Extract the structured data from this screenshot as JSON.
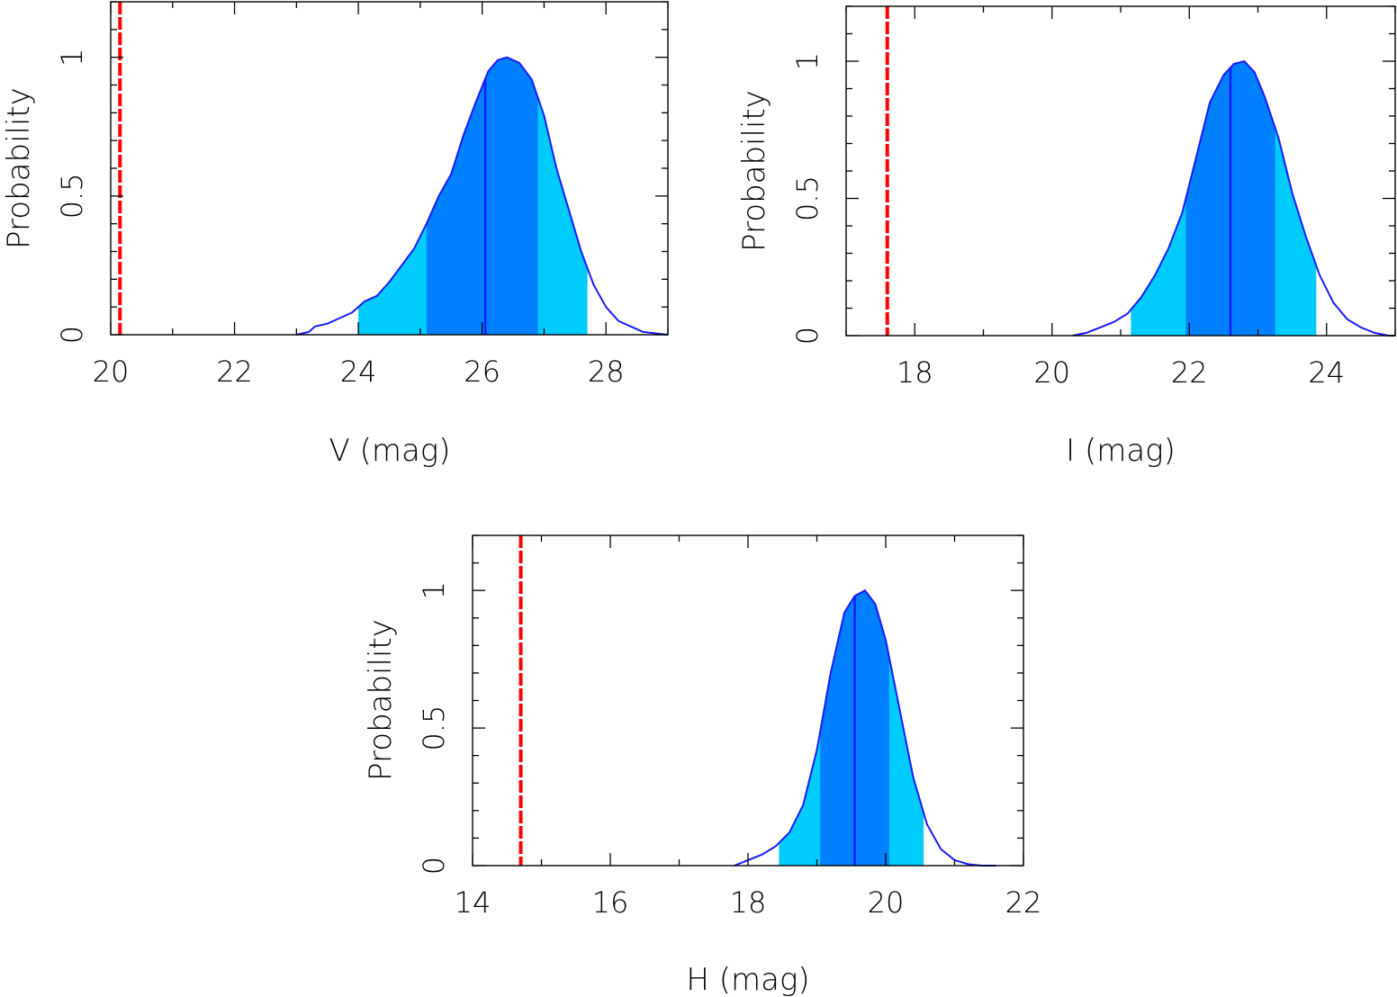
{
  "colors": {
    "curve": "#1a1aff",
    "band_1sigma": "#0080ff",
    "band_2sigma": "#00ccff",
    "median": "#1a1aff",
    "observed": "#ff0000"
  },
  "chart_data": [
    {
      "id": "v-band",
      "type": "line",
      "xlabel": "V (mag)",
      "ylabel": "Probability",
      "xlim": [
        20,
        29
      ],
      "ylim": [
        0,
        1.2
      ],
      "xticks": [
        20,
        22,
        24,
        26,
        28
      ],
      "xtick_labels": [
        "20",
        "22",
        "24",
        "26",
        "28"
      ],
      "yticks": [
        0,
        0.5,
        1
      ],
      "ytick_labels": [
        "0",
        "0.5",
        "1"
      ],
      "x": [
        23.0,
        23.2,
        23.3,
        23.5,
        23.7,
        23.9,
        24.1,
        24.3,
        24.5,
        24.7,
        24.9,
        25.1,
        25.3,
        25.5,
        25.7,
        25.9,
        26.1,
        26.25,
        26.4,
        26.6,
        26.8,
        27.0,
        27.2,
        27.4,
        27.6,
        27.8,
        28.0,
        28.2,
        28.4,
        28.6,
        28.8,
        29.0
      ],
      "y": [
        0.0,
        0.01,
        0.03,
        0.04,
        0.06,
        0.08,
        0.12,
        0.14,
        0.19,
        0.25,
        0.31,
        0.4,
        0.5,
        0.58,
        0.72,
        0.84,
        0.95,
        0.99,
        1.0,
        0.98,
        0.92,
        0.79,
        0.6,
        0.45,
        0.3,
        0.18,
        0.1,
        0.05,
        0.03,
        0.01,
        0.005,
        0.0
      ],
      "band_2sigma": [
        24.0,
        27.7
      ],
      "band_1sigma": [
        25.1,
        26.9
      ],
      "median": 26.05,
      "observed": 20.15
    },
    {
      "id": "i-band",
      "type": "line",
      "xlabel": "I (mag)",
      "ylabel": "Probability",
      "xlim": [
        17.0,
        25.0
      ],
      "ylim": [
        0,
        1.2
      ],
      "xticks": [
        18,
        20,
        22,
        24
      ],
      "xtick_labels": [
        "18",
        "20",
        "22",
        "24"
      ],
      "yticks": [
        0,
        0.5,
        1
      ],
      "ytick_labels": [
        "0",
        "0.5",
        "1"
      ],
      "x": [
        20.3,
        20.5,
        20.7,
        20.9,
        21.1,
        21.3,
        21.5,
        21.7,
        21.9,
        22.1,
        22.3,
        22.5,
        22.65,
        22.8,
        22.95,
        23.1,
        23.3,
        23.5,
        23.7,
        23.9,
        24.1,
        24.3,
        24.5,
        24.7,
        24.9,
        25.0
      ],
      "y": [
        0.0,
        0.01,
        0.03,
        0.05,
        0.08,
        0.14,
        0.22,
        0.32,
        0.45,
        0.65,
        0.85,
        0.95,
        0.99,
        1.0,
        0.96,
        0.87,
        0.72,
        0.52,
        0.36,
        0.22,
        0.12,
        0.06,
        0.03,
        0.01,
        0.0,
        0.0
      ],
      "band_2sigma": [
        21.15,
        23.85
      ],
      "band_1sigma": [
        21.95,
        23.25
      ],
      "median": 22.6,
      "observed": 17.6
    },
    {
      "id": "h-band",
      "type": "line",
      "xlabel": "H (mag)",
      "ylabel": "Probability",
      "xlim": [
        14,
        22
      ],
      "ylim": [
        0,
        1.2
      ],
      "xticks": [
        14,
        16,
        18,
        20,
        22
      ],
      "xtick_labels": [
        "14",
        "16",
        "18",
        "20",
        "22"
      ],
      "yticks": [
        0,
        0.5,
        1
      ],
      "ytick_labels": [
        "0",
        "0.5",
        "1"
      ],
      "x": [
        17.8,
        18.0,
        18.2,
        18.4,
        18.6,
        18.8,
        19.0,
        19.2,
        19.4,
        19.55,
        19.7,
        19.85,
        20.0,
        20.2,
        20.4,
        20.6,
        20.8,
        21.0,
        21.2,
        21.4,
        21.6
      ],
      "y": [
        0.0,
        0.02,
        0.04,
        0.07,
        0.12,
        0.22,
        0.42,
        0.7,
        0.92,
        0.98,
        1.0,
        0.95,
        0.82,
        0.57,
        0.32,
        0.15,
        0.06,
        0.02,
        0.005,
        0.0,
        0.0
      ],
      "band_2sigma": [
        18.45,
        20.55
      ],
      "band_1sigma": [
        19.05,
        20.05
      ],
      "median": 19.55,
      "observed": 14.7
    }
  ]
}
